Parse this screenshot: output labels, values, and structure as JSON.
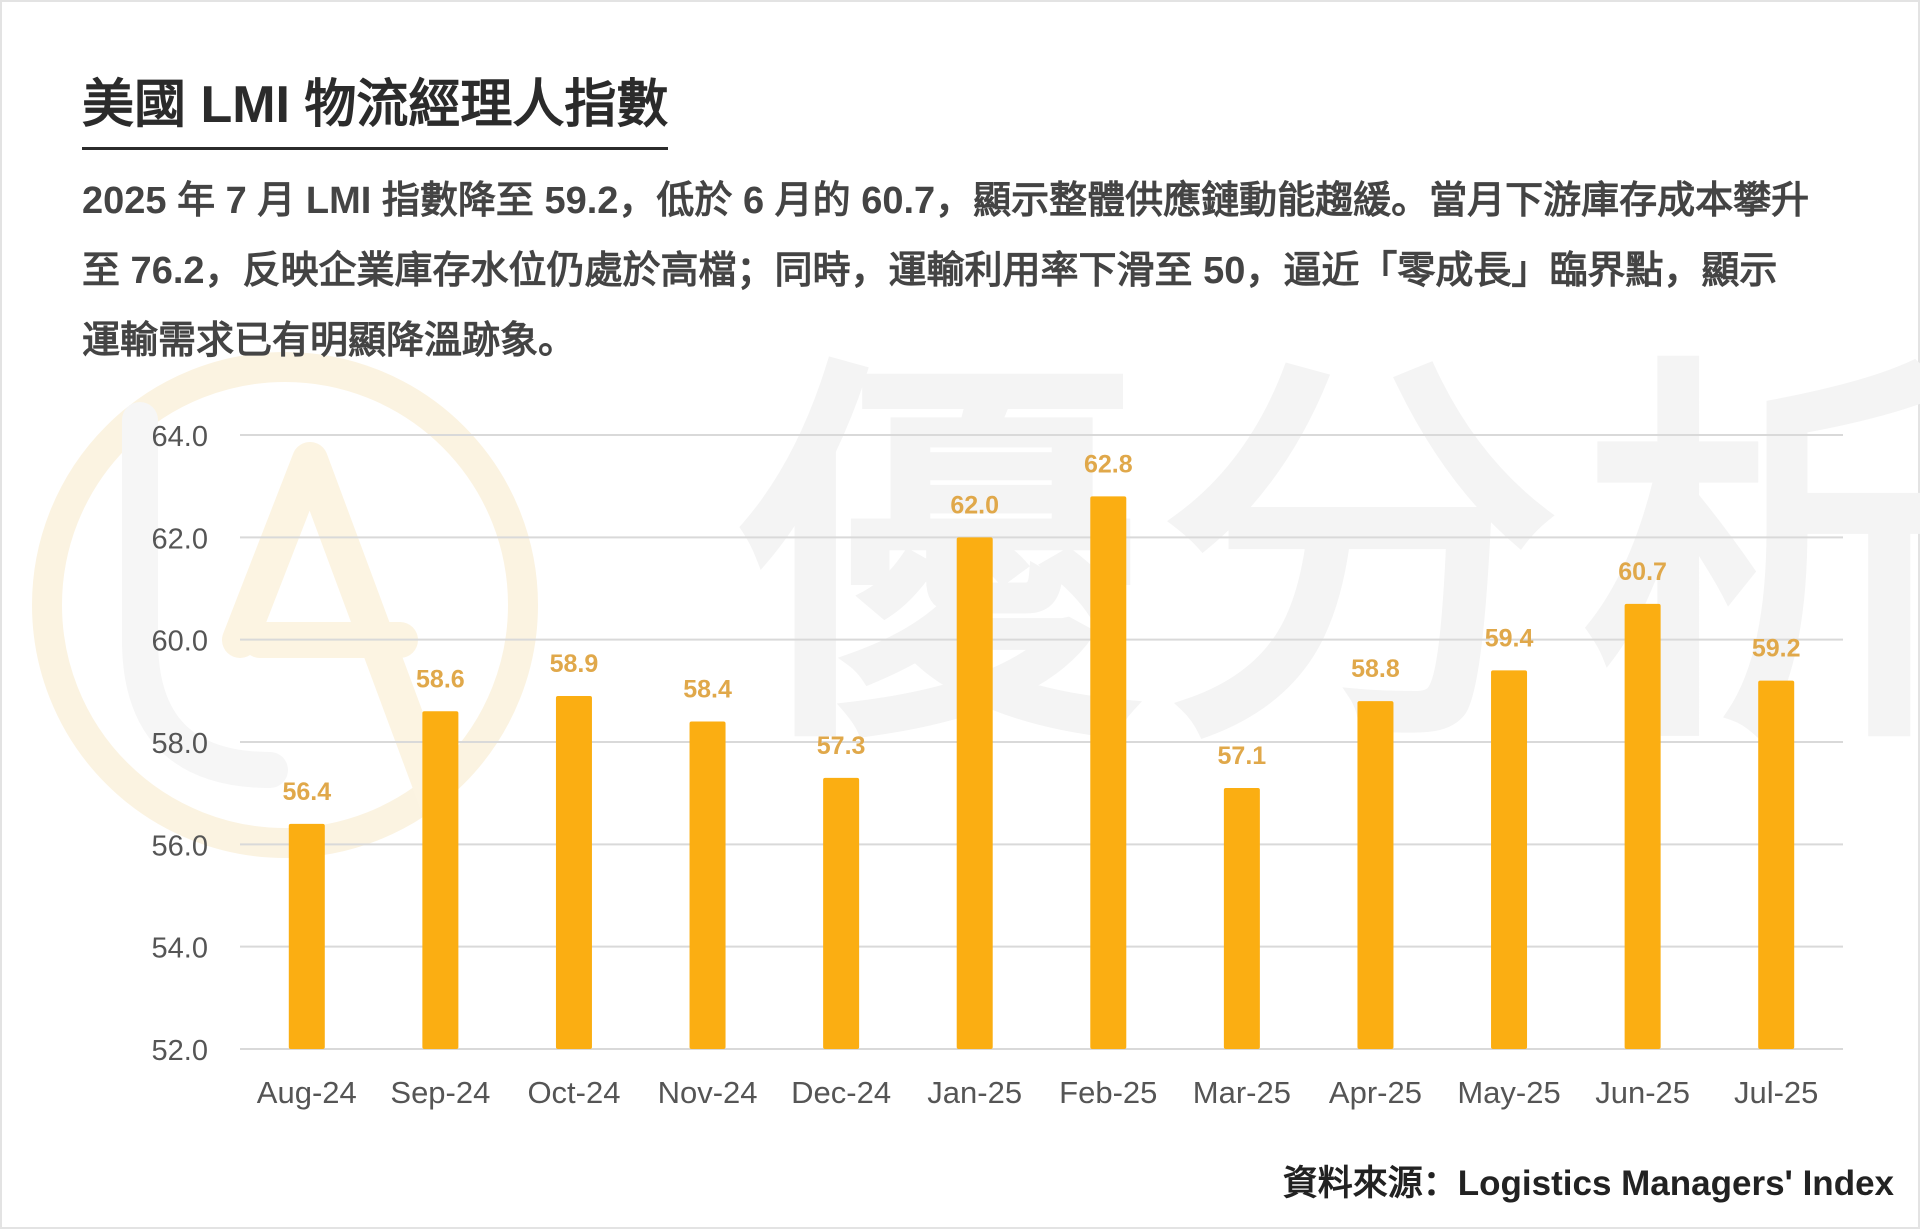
{
  "header": {
    "title": "美國 LMI 物流經理人指數",
    "description": "2025 年 7 月 LMI 指數降至 59.2，低於 6 月的 60.7，顯示整體供應鏈動能趨緩。當月下游庫存成本攀升至 76.2，反映企業庫存水位仍處於高檔；同時，運輸利用率下滑至 50，逼近「零成長」臨界點，顯示運輸需求已有明顯降溫跡象。"
  },
  "watermark": {
    "text": "優分析",
    "logo_icon": "ua-logo-icon"
  },
  "chart_data": {
    "type": "bar",
    "categories": [
      "Aug-24",
      "Sep-24",
      "Oct-24",
      "Nov-24",
      "Dec-24",
      "Jan-25",
      "Feb-25",
      "Mar-25",
      "Apr-25",
      "May-25",
      "Jun-25",
      "Jul-25"
    ],
    "values": [
      56.4,
      58.6,
      58.9,
      58.4,
      57.3,
      62.0,
      62.8,
      57.1,
      58.8,
      59.4,
      60.7,
      59.2
    ],
    "data_labels": [
      "56.4",
      "58.6",
      "58.9",
      "58.4",
      "57.3",
      "62.0",
      "62.8",
      "57.1",
      "58.8",
      "59.4",
      "60.7",
      "59.2"
    ],
    "yticks": [
      "52.0",
      "54.0",
      "56.0",
      "58.0",
      "60.0",
      "62.0",
      "64.0"
    ],
    "ylim": [
      52,
      64
    ],
    "grid": true,
    "legend": "none",
    "bar_color": "#FBAE12",
    "label_color": "#E0A84A",
    "grid_color": "#d9d9d9",
    "tick_color": "#555555"
  },
  "footer": {
    "source": "資料來源：Logistics Managers' Index"
  }
}
